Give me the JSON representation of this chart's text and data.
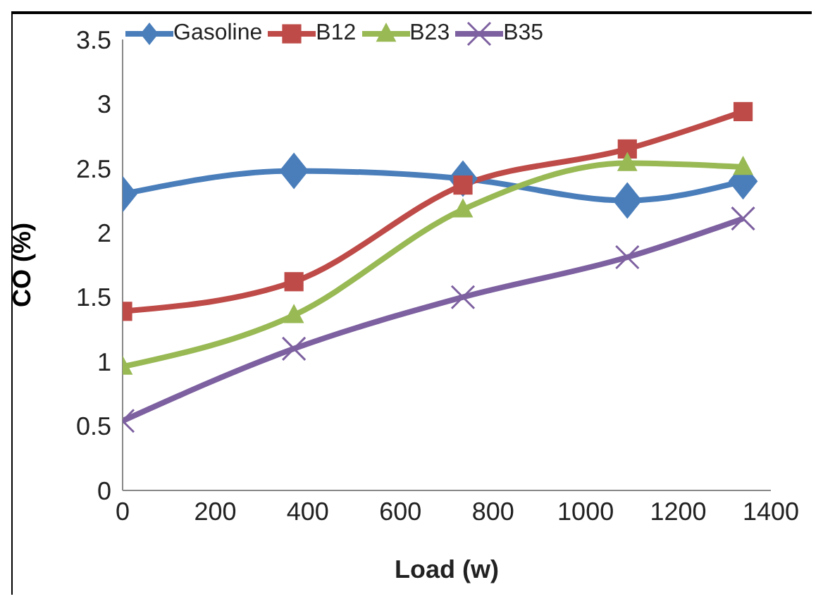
{
  "chart_data": {
    "type": "line",
    "xlabel": "Load (w)",
    "ylabel": "CO (%)",
    "x": [
      0,
      370,
      735,
      1090,
      1340
    ],
    "xlim": [
      0,
      1400
    ],
    "xticks": [
      0,
      200,
      400,
      600,
      800,
      1000,
      1200,
      1400
    ],
    "ylim": [
      0,
      3.5
    ],
    "yticks": [
      0,
      0.5,
      1,
      1.5,
      2,
      2.5,
      3,
      3.5
    ],
    "grid": false,
    "legend": "top",
    "series": [
      {
        "name": "Gasoline",
        "color": "#4a7ebb",
        "marker": "diamond",
        "values": [
          2.3,
          2.48,
          2.42,
          2.25,
          2.4
        ]
      },
      {
        "name": "B12",
        "color": "#be4b48",
        "marker": "square",
        "values": [
          1.39,
          1.62,
          2.37,
          2.65,
          2.94
        ]
      },
      {
        "name": "B23",
        "color": "#98b954",
        "marker": "triangle",
        "values": [
          0.96,
          1.36,
          2.18,
          2.54,
          2.51
        ]
      },
      {
        "name": "B35",
        "color": "#7d60a0",
        "marker": "cross",
        "values": [
          0.54,
          1.1,
          1.5,
          1.81,
          2.11
        ]
      }
    ]
  }
}
